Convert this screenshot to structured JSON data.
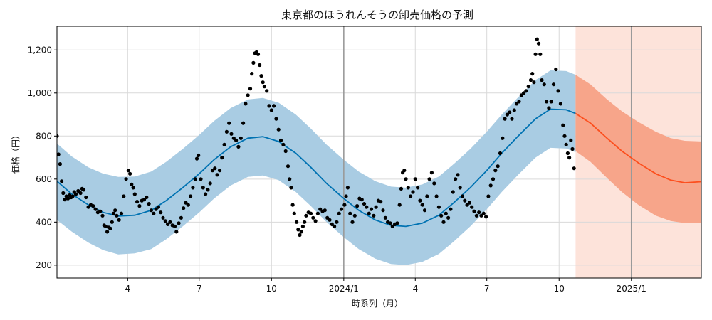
{
  "chart_data": {
    "type": "line",
    "title": "東京都のほうれんそうの卸売価格の予測",
    "xlabel": "時系列（月）",
    "ylabel": "価格（円）",
    "x_start": "2023-01-01",
    "x_end": "2025-03-31",
    "forecast_start": "2024-10-22",
    "ylim": [
      140,
      1310
    ],
    "grid": true,
    "x_ticks": [
      {
        "date": "2023-04-01",
        "label": "4"
      },
      {
        "date": "2023-07-01",
        "label": "7"
      },
      {
        "date": "2023-10-01",
        "label": "10"
      },
      {
        "date": "2024-01-01",
        "label": "2024/1"
      },
      {
        "date": "2024-04-01",
        "label": "4"
      },
      {
        "date": "2024-07-01",
        "label": "7"
      },
      {
        "date": "2024-10-01",
        "label": "10"
      },
      {
        "date": "2025-01-01",
        "label": "2025/1"
      }
    ],
    "y_ticks": [
      {
        "value": 200,
        "label": "200"
      },
      {
        "value": 400,
        "label": "400"
      },
      {
        "value": 600,
        "label": "600"
      },
      {
        "value": 800,
        "label": "800"
      },
      {
        "value": 1000,
        "label": "1,000"
      },
      {
        "value": 1200,
        "label": "1,200"
      }
    ],
    "vlines": [
      "2024-01-01",
      "2025-01-01"
    ],
    "colors": {
      "fitted_line": "#0072b2",
      "fitted_band": "#a9cce3",
      "forecast_line": "#fc4f1e",
      "forecast_band": "#f7a58a",
      "forecast_shade": "#fde3da",
      "points": "#000000",
      "vline": "#9a9a9a"
    },
    "fitted": [
      {
        "x": "2023-01-01",
        "y": 590,
        "lo": 410,
        "hi": 765
      },
      {
        "x": "2023-01-20",
        "y": 530,
        "lo": 355,
        "hi": 705
      },
      {
        "x": "2023-02-10",
        "y": 480,
        "lo": 305,
        "hi": 655
      },
      {
        "x": "2023-03-01",
        "y": 445,
        "lo": 270,
        "hi": 625
      },
      {
        "x": "2023-03-20",
        "y": 428,
        "lo": 250,
        "hi": 610
      },
      {
        "x": "2023-04-10",
        "y": 432,
        "lo": 255,
        "hi": 612
      },
      {
        "x": "2023-05-01",
        "y": 455,
        "lo": 275,
        "hi": 635
      },
      {
        "x": "2023-05-20",
        "y": 500,
        "lo": 320,
        "hi": 680
      },
      {
        "x": "2023-06-10",
        "y": 560,
        "lo": 380,
        "hi": 740
      },
      {
        "x": "2023-07-01",
        "y": 625,
        "lo": 445,
        "hi": 805
      },
      {
        "x": "2023-07-20",
        "y": 690,
        "lo": 510,
        "hi": 870
      },
      {
        "x": "2023-08-10",
        "y": 750,
        "lo": 570,
        "hi": 930
      },
      {
        "x": "2023-09-01",
        "y": 790,
        "lo": 610,
        "hi": 970
      },
      {
        "x": "2023-09-20",
        "y": 797,
        "lo": 617,
        "hi": 977
      },
      {
        "x": "2023-10-10",
        "y": 775,
        "lo": 595,
        "hi": 955
      },
      {
        "x": "2023-11-01",
        "y": 720,
        "lo": 540,
        "hi": 900
      },
      {
        "x": "2023-11-20",
        "y": 655,
        "lo": 475,
        "hi": 835
      },
      {
        "x": "2023-12-10",
        "y": 580,
        "lo": 400,
        "hi": 760
      },
      {
        "x": "2024-01-01",
        "y": 510,
        "lo": 330,
        "hi": 690
      },
      {
        "x": "2024-01-20",
        "y": 455,
        "lo": 275,
        "hi": 635
      },
      {
        "x": "2024-02-10",
        "y": 410,
        "lo": 230,
        "hi": 590
      },
      {
        "x": "2024-03-01",
        "y": 385,
        "lo": 205,
        "hi": 565
      },
      {
        "x": "2024-03-20",
        "y": 380,
        "lo": 200,
        "hi": 560
      },
      {
        "x": "2024-04-10",
        "y": 395,
        "lo": 215,
        "hi": 575
      },
      {
        "x": "2024-05-01",
        "y": 432,
        "lo": 252,
        "hi": 612
      },
      {
        "x": "2024-05-20",
        "y": 490,
        "lo": 310,
        "hi": 670
      },
      {
        "x": "2024-06-10",
        "y": 560,
        "lo": 380,
        "hi": 740
      },
      {
        "x": "2024-07-01",
        "y": 640,
        "lo": 460,
        "hi": 820
      },
      {
        "x": "2024-07-20",
        "y": 720,
        "lo": 540,
        "hi": 900
      },
      {
        "x": "2024-08-10",
        "y": 800,
        "lo": 620,
        "hi": 980
      },
      {
        "x": "2024-09-01",
        "y": 880,
        "lo": 700,
        "hi": 1060
      },
      {
        "x": "2024-09-20",
        "y": 925,
        "lo": 745,
        "hi": 1105
      },
      {
        "x": "2024-10-10",
        "y": 922,
        "lo": 742,
        "hi": 1102
      },
      {
        "x": "2024-10-22",
        "y": 905,
        "lo": 725,
        "hi": 1085
      }
    ],
    "forecast": [
      {
        "x": "2024-10-22",
        "y": 905,
        "lo": 730,
        "hi": 1085
      },
      {
        "x": "2024-11-10",
        "y": 860,
        "lo": 680,
        "hi": 1040
      },
      {
        "x": "2024-12-01",
        "y": 790,
        "lo": 605,
        "hi": 970
      },
      {
        "x": "2024-12-20",
        "y": 730,
        "lo": 540,
        "hi": 915
      },
      {
        "x": "2025-01-10",
        "y": 675,
        "lo": 480,
        "hi": 865
      },
      {
        "x": "2025-02-01",
        "y": 625,
        "lo": 430,
        "hi": 820
      },
      {
        "x": "2025-02-20",
        "y": 595,
        "lo": 405,
        "hi": 790
      },
      {
        "x": "2025-03-10",
        "y": 583,
        "lo": 395,
        "hi": 778
      },
      {
        "x": "2025-03-31",
        "y": 588,
        "lo": 395,
        "hi": 775
      }
    ],
    "observed": [
      [
        "2023-01-01",
        800
      ],
      [
        "2023-01-03",
        715
      ],
      [
        "2023-01-05",
        670
      ],
      [
        "2023-01-07",
        590
      ],
      [
        "2023-01-09",
        535
      ],
      [
        "2023-01-11",
        505
      ],
      [
        "2023-01-13",
        520
      ],
      [
        "2023-01-15",
        510
      ],
      [
        "2023-01-17",
        525
      ],
      [
        "2023-01-19",
        515
      ],
      [
        "2023-01-21",
        520
      ],
      [
        "2023-01-23",
        540
      ],
      [
        "2023-01-25",
        530
      ],
      [
        "2023-01-28",
        545
      ],
      [
        "2023-01-31",
        535
      ],
      [
        "2023-02-02",
        555
      ],
      [
        "2023-02-04",
        550
      ],
      [
        "2023-02-07",
        515
      ],
      [
        "2023-02-10",
        470
      ],
      [
        "2023-02-13",
        480
      ],
      [
        "2023-02-16",
        475
      ],
      [
        "2023-02-19",
        460
      ],
      [
        "2023-02-22",
        445
      ],
      [
        "2023-02-25",
        450
      ],
      [
        "2023-02-28",
        430
      ],
      [
        "2023-03-02",
        385
      ],
      [
        "2023-03-04",
        380
      ],
      [
        "2023-03-06",
        355
      ],
      [
        "2023-03-08",
        375
      ],
      [
        "2023-03-10",
        370
      ],
      [
        "2023-03-12",
        400
      ],
      [
        "2023-03-14",
        440
      ],
      [
        "2023-03-16",
        455
      ],
      [
        "2023-03-18",
        430
      ],
      [
        "2023-03-21",
        410
      ],
      [
        "2023-03-24",
        440
      ],
      [
        "2023-03-27",
        520
      ],
      [
        "2023-03-30",
        600
      ],
      [
        "2023-04-02",
        640
      ],
      [
        "2023-04-04",
        625
      ],
      [
        "2023-04-06",
        575
      ],
      [
        "2023-04-08",
        560
      ],
      [
        "2023-04-10",
        530
      ],
      [
        "2023-04-13",
        495
      ],
      [
        "2023-04-16",
        475
      ],
      [
        "2023-04-19",
        500
      ],
      [
        "2023-04-22",
        505
      ],
      [
        "2023-04-25",
        515
      ],
      [
        "2023-04-28",
        485
      ],
      [
        "2023-05-01",
        455
      ],
      [
        "2023-05-04",
        440
      ],
      [
        "2023-05-07",
        460
      ],
      [
        "2023-05-10",
        470
      ],
      [
        "2023-05-13",
        445
      ],
      [
        "2023-05-16",
        420
      ],
      [
        "2023-05-19",
        405
      ],
      [
        "2023-05-22",
        390
      ],
      [
        "2023-05-25",
        400
      ],
      [
        "2023-05-28",
        385
      ],
      [
        "2023-05-31",
        380
      ],
      [
        "2023-06-02",
        355
      ],
      [
        "2023-06-05",
        395
      ],
      [
        "2023-06-08",
        420
      ],
      [
        "2023-06-11",
        465
      ],
      [
        "2023-06-14",
        490
      ],
      [
        "2023-06-17",
        480
      ],
      [
        "2023-06-20",
        520
      ],
      [
        "2023-06-23",
        560
      ],
      [
        "2023-06-26",
        600
      ],
      [
        "2023-06-28",
        695
      ],
      [
        "2023-06-30",
        710
      ],
      [
        "2023-07-03",
        600
      ],
      [
        "2023-07-06",
        560
      ],
      [
        "2023-07-09",
        530
      ],
      [
        "2023-07-12",
        550
      ],
      [
        "2023-07-15",
        580
      ],
      [
        "2023-07-18",
        640
      ],
      [
        "2023-07-21",
        650
      ],
      [
        "2023-07-24",
        620
      ],
      [
        "2023-07-27",
        640
      ],
      [
        "2023-07-30",
        700
      ],
      [
        "2023-08-02",
        760
      ],
      [
        "2023-08-05",
        820
      ],
      [
        "2023-08-08",
        860
      ],
      [
        "2023-08-11",
        810
      ],
      [
        "2023-08-14",
        790
      ],
      [
        "2023-08-17",
        780
      ],
      [
        "2023-08-20",
        750
      ],
      [
        "2023-08-23",
        790
      ],
      [
        "2023-08-26",
        860
      ],
      [
        "2023-08-29",
        950
      ],
      [
        "2023-09-01",
        990
      ],
      [
        "2023-09-04",
        1020
      ],
      [
        "2023-09-06",
        1090
      ],
      [
        "2023-09-08",
        1140
      ],
      [
        "2023-09-10",
        1185
      ],
      [
        "2023-09-12",
        1190
      ],
      [
        "2023-09-14",
        1180
      ],
      [
        "2023-09-16",
        1130
      ],
      [
        "2023-09-18",
        1080
      ],
      [
        "2023-09-20",
        1050
      ],
      [
        "2023-09-22",
        1030
      ],
      [
        "2023-09-25",
        1010
      ],
      [
        "2023-09-28",
        940
      ],
      [
        "2023-10-01",
        920
      ],
      [
        "2023-10-04",
        940
      ],
      [
        "2023-10-07",
        880
      ],
      [
        "2023-10-10",
        830
      ],
      [
        "2023-10-13",
        780
      ],
      [
        "2023-10-16",
        760
      ],
      [
        "2023-10-19",
        730
      ],
      [
        "2023-10-22",
        660
      ],
      [
        "2023-10-24",
        600
      ],
      [
        "2023-10-26",
        560
      ],
      [
        "2023-10-28",
        480
      ],
      [
        "2023-10-30",
        440
      ],
      [
        "2023-11-02",
        400
      ],
      [
        "2023-11-04",
        365
      ],
      [
        "2023-11-06",
        340
      ],
      [
        "2023-11-08",
        355
      ],
      [
        "2023-11-10",
        380
      ],
      [
        "2023-11-12",
        400
      ],
      [
        "2023-11-14",
        430
      ],
      [
        "2023-11-17",
        445
      ],
      [
        "2023-11-20",
        440
      ],
      [
        "2023-11-23",
        420
      ],
      [
        "2023-11-26",
        405
      ],
      [
        "2023-11-29",
        440
      ],
      [
        "2023-12-02",
        460
      ],
      [
        "2023-12-05",
        450
      ],
      [
        "2023-12-08",
        455
      ],
      [
        "2023-12-11",
        420
      ],
      [
        "2023-12-14",
        410
      ],
      [
        "2023-12-17",
        390
      ],
      [
        "2023-12-20",
        380
      ],
      [
        "2023-12-23",
        400
      ],
      [
        "2023-12-26",
        440
      ],
      [
        "2023-12-29",
        460
      ],
      [
        "2024-01-02",
        480
      ],
      [
        "2024-01-04",
        520
      ],
      [
        "2024-01-06",
        560
      ],
      [
        "2024-01-09",
        440
      ],
      [
        "2024-01-12",
        400
      ],
      [
        "2024-01-15",
        430
      ],
      [
        "2024-01-18",
        475
      ],
      [
        "2024-01-21",
        510
      ],
      [
        "2024-01-24",
        505
      ],
      [
        "2024-01-27",
        485
      ],
      [
        "2024-01-30",
        470
      ],
      [
        "2024-02-02",
        440
      ],
      [
        "2024-02-05",
        460
      ],
      [
        "2024-02-08",
        430
      ],
      [
        "2024-02-11",
        470
      ],
      [
        "2024-02-14",
        500
      ],
      [
        "2024-02-17",
        495
      ],
      [
        "2024-02-20",
        455
      ],
      [
        "2024-02-23",
        420
      ],
      [
        "2024-02-26",
        400
      ],
      [
        "2024-02-29",
        395
      ],
      [
        "2024-03-03",
        380
      ],
      [
        "2024-03-06",
        390
      ],
      [
        "2024-03-09",
        395
      ],
      [
        "2024-03-12",
        480
      ],
      [
        "2024-03-14",
        555
      ],
      [
        "2024-03-16",
        630
      ],
      [
        "2024-03-18",
        640
      ],
      [
        "2024-03-20",
        600
      ],
      [
        "2024-03-23",
        560
      ],
      [
        "2024-03-26",
        520
      ],
      [
        "2024-03-29",
        540
      ],
      [
        "2024-04-01",
        600
      ],
      [
        "2024-04-04",
        560
      ],
      [
        "2024-04-07",
        500
      ],
      [
        "2024-04-10",
        480
      ],
      [
        "2024-04-13",
        455
      ],
      [
        "2024-04-16",
        520
      ],
      [
        "2024-04-19",
        600
      ],
      [
        "2024-04-22",
        630
      ],
      [
        "2024-04-25",
        580
      ],
      [
        "2024-04-28",
        520
      ],
      [
        "2024-05-01",
        470
      ],
      [
        "2024-05-04",
        430
      ],
      [
        "2024-05-07",
        400
      ],
      [
        "2024-05-10",
        440
      ],
      [
        "2024-05-13",
        420
      ],
      [
        "2024-05-16",
        460
      ],
      [
        "2024-05-19",
        540
      ],
      [
        "2024-05-22",
        600
      ],
      [
        "2024-05-25",
        620
      ],
      [
        "2024-05-28",
        560
      ],
      [
        "2024-05-31",
        520
      ],
      [
        "2024-06-03",
        500
      ],
      [
        "2024-06-06",
        480
      ],
      [
        "2024-06-09",
        490
      ],
      [
        "2024-06-12",
        470
      ],
      [
        "2024-06-15",
        450
      ],
      [
        "2024-06-18",
        430
      ],
      [
        "2024-06-21",
        445
      ],
      [
        "2024-06-24",
        430
      ],
      [
        "2024-06-27",
        440
      ],
      [
        "2024-06-30",
        425
      ],
      [
        "2024-07-03",
        520
      ],
      [
        "2024-07-06",
        570
      ],
      [
        "2024-07-09",
        600
      ],
      [
        "2024-07-12",
        640
      ],
      [
        "2024-07-15",
        660
      ],
      [
        "2024-07-18",
        720
      ],
      [
        "2024-07-21",
        790
      ],
      [
        "2024-07-24",
        880
      ],
      [
        "2024-07-27",
        900
      ],
      [
        "2024-07-30",
        910
      ],
      [
        "2024-08-02",
        880
      ],
      [
        "2024-08-05",
        920
      ],
      [
        "2024-08-08",
        950
      ],
      [
        "2024-08-11",
        960
      ],
      [
        "2024-08-14",
        990
      ],
      [
        "2024-08-17",
        1000
      ],
      [
        "2024-08-20",
        1010
      ],
      [
        "2024-08-23",
        1030
      ],
      [
        "2024-08-26",
        1060
      ],
      [
        "2024-08-28",
        1090
      ],
      [
        "2024-08-30",
        1050
      ],
      [
        "2024-09-01",
        1180
      ],
      [
        "2024-09-03",
        1250
      ],
      [
        "2024-09-05",
        1230
      ],
      [
        "2024-09-07",
        1180
      ],
      [
        "2024-09-09",
        1060
      ],
      [
        "2024-09-12",
        1040
      ],
      [
        "2024-09-15",
        960
      ],
      [
        "2024-09-18",
        930
      ],
      [
        "2024-09-21",
        960
      ],
      [
        "2024-09-24",
        1040
      ],
      [
        "2024-09-27",
        1110
      ],
      [
        "2024-09-30",
        1010
      ],
      [
        "2024-10-03",
        950
      ],
      [
        "2024-10-06",
        850
      ],
      [
        "2024-10-08",
        800
      ],
      [
        "2024-10-10",
        760
      ],
      [
        "2024-10-12",
        720
      ],
      [
        "2024-10-14",
        700
      ],
      [
        "2024-10-16",
        780
      ],
      [
        "2024-10-18",
        740
      ],
      [
        "2024-10-20",
        650
      ]
    ]
  }
}
